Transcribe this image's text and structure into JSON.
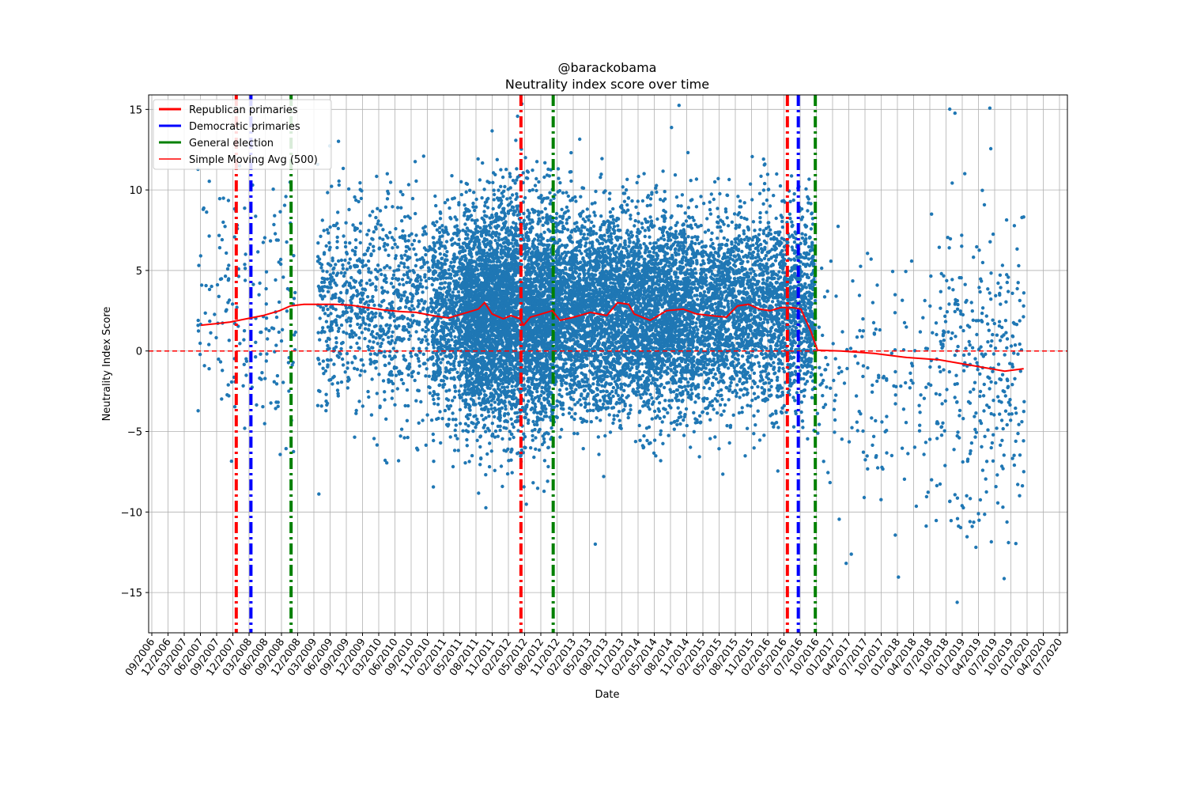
{
  "chart_data": {
    "type": "scatter",
    "title": "@barackobama",
    "subtitle": "Neutrality index score over time",
    "xlabel": "Date",
    "ylabel": "Neutrality Index Score",
    "xlim": [
      "2006-09-01",
      "2020-09-15"
    ],
    "ylim": [
      -17.5,
      15.9
    ],
    "yticks": [
      -15,
      -10,
      -5,
      0,
      5,
      10,
      15
    ],
    "ytick_labels": [
      "−15",
      "−10",
      "−5",
      "0",
      "5",
      "10",
      "15"
    ],
    "xtick_labels": [
      "09/2006",
      "12/2006",
      "03/2007",
      "06/2007",
      "09/2007",
      "12/2007",
      "03/2008",
      "06/2008",
      "09/2008",
      "12/2008",
      "03/2009",
      "06/2009",
      "09/2009",
      "12/2009",
      "03/2010",
      "06/2010",
      "09/2010",
      "11/2010",
      "02/2011",
      "05/2011",
      "08/2011",
      "11/2011",
      "02/2012",
      "05/2012",
      "08/2012",
      "11/2012",
      "02/2013",
      "05/2013",
      "08/2013",
      "11/2013",
      "02/2014",
      "05/2014",
      "08/2014",
      "11/2014",
      "02/2015",
      "05/2015",
      "08/2015",
      "11/2015",
      "02/2016",
      "05/2016",
      "07/2016",
      "10/2016",
      "01/2017",
      "04/2017",
      "07/2017",
      "10/2017",
      "01/2018",
      "04/2018",
      "07/2018",
      "10/2018",
      "01/2019",
      "04/2019",
      "07/2019",
      "10/2019",
      "01/2020",
      "04/2020",
      "07/2020"
    ],
    "grid": true,
    "legend_position": "top-left",
    "zero_line": {
      "y": 0,
      "color": "#ff0000",
      "style": "dashed"
    },
    "legend": [
      {
        "label": "Republican primaries",
        "color": "#ff0000",
        "kind": "thick-line"
      },
      {
        "label": "Democratic primaries",
        "color": "#0000ff",
        "kind": "thick-line"
      },
      {
        "label": "General election",
        "color": "#008000",
        "kind": "thick-line"
      },
      {
        "label": "Simple Moving Avg (500)",
        "color": "#ff0000",
        "kind": "line"
      }
    ],
    "event_lines": [
      {
        "label": "Republican primaries",
        "date": "2008-01-03",
        "color": "#ff0000"
      },
      {
        "label": "Democratic primaries",
        "date": "2008-03-25",
        "color": "#0000ff"
      },
      {
        "label": "General election",
        "date": "2008-11-04",
        "color": "#008000"
      },
      {
        "label": "Republican primaries",
        "date": "2012-05-10",
        "color": "#ff0000"
      },
      {
        "label": "General election",
        "date": "2012-11-06",
        "color": "#008000"
      },
      {
        "label": "Republican primaries",
        "date": "2016-06-05",
        "color": "#ff0000"
      },
      {
        "label": "Democratic primaries",
        "date": "2016-08-05",
        "color": "#0000ff"
      },
      {
        "label": "General election",
        "date": "2016-11-08",
        "color": "#008000"
      }
    ],
    "moving_average": {
      "name": "Simple Moving Avg (500)",
      "color": "#ff0000",
      "points": [
        [
          "2007-06-20",
          1.6
        ],
        [
          "2007-09-15",
          1.7
        ],
        [
          "2007-12-01",
          1.8
        ],
        [
          "2008-03-01",
          2.0
        ],
        [
          "2008-06-01",
          2.2
        ],
        [
          "2008-09-01",
          2.5
        ],
        [
          "2008-11-01",
          2.8
        ],
        [
          "2009-01-15",
          2.9
        ],
        [
          "2009-04-01",
          2.9
        ],
        [
          "2009-07-01",
          2.9
        ],
        [
          "2009-10-01",
          2.85
        ],
        [
          "2010-01-01",
          2.7
        ],
        [
          "2010-04-01",
          2.55
        ],
        [
          "2010-07-01",
          2.45
        ],
        [
          "2010-10-01",
          2.4
        ],
        [
          "2011-01-01",
          2.2
        ],
        [
          "2011-04-01",
          2.05
        ],
        [
          "2011-07-01",
          2.35
        ],
        [
          "2011-09-15",
          2.6
        ],
        [
          "2011-10-20",
          3.0
        ],
        [
          "2011-12-01",
          2.3
        ],
        [
          "2012-02-01",
          2.0
        ],
        [
          "2012-03-15",
          2.2
        ],
        [
          "2012-05-05",
          2.0
        ],
        [
          "2012-05-25",
          1.6
        ],
        [
          "2012-07-01",
          2.1
        ],
        [
          "2012-09-01",
          2.3
        ],
        [
          "2012-11-01",
          2.5
        ],
        [
          "2012-12-15",
          1.9
        ],
        [
          "2013-03-01",
          2.1
        ],
        [
          "2013-06-01",
          2.4
        ],
        [
          "2013-09-01",
          2.2
        ],
        [
          "2013-11-01",
          3.0
        ],
        [
          "2014-01-01",
          2.9
        ],
        [
          "2014-02-01",
          2.3
        ],
        [
          "2014-05-01",
          1.9
        ],
        [
          "2014-08-01",
          2.5
        ],
        [
          "2014-11-01",
          2.6
        ],
        [
          "2015-01-15",
          2.3
        ],
        [
          "2015-04-01",
          2.2
        ],
        [
          "2015-07-01",
          2.1
        ],
        [
          "2015-09-01",
          2.8
        ],
        [
          "2015-11-01",
          2.9
        ],
        [
          "2016-01-01",
          2.6
        ],
        [
          "2016-03-01",
          2.5
        ],
        [
          "2016-05-01",
          2.7
        ],
        [
          "2016-07-01",
          2.7
        ],
        [
          "2016-08-20",
          2.6
        ],
        [
          "2016-10-15",
          1.2
        ],
        [
          "2016-11-20",
          0.05
        ],
        [
          "2017-04-01",
          0.0
        ],
        [
          "2017-10-01",
          -0.15
        ],
        [
          "2018-04-01",
          -0.4
        ],
        [
          "2018-10-01",
          -0.55
        ],
        [
          "2019-04-01",
          -0.9
        ],
        [
          "2019-10-01",
          -1.25
        ],
        [
          "2020-01-15",
          -1.1
        ]
      ]
    },
    "scatter_series": {
      "name": "tweets",
      "color": "#1f77b4",
      "density_segments": [
        {
          "start": "2007-06-01",
          "end": "2008-12-01",
          "count": 180,
          "mean": 2.8,
          "sd": 4.0
        },
        {
          "start": "2009-04-01",
          "end": "2011-01-01",
          "count": 900,
          "mean": 2.6,
          "sd": 3.3
        },
        {
          "start": "2011-01-01",
          "end": "2011-07-01",
          "count": 700,
          "mean": 2.2,
          "sd": 3.2
        },
        {
          "start": "2011-07-01",
          "end": "2012-11-10",
          "count": 4200,
          "mean": 2.1,
          "sd": 3.5
        },
        {
          "start": "2012-11-10",
          "end": "2015-01-01",
          "count": 4500,
          "mean": 2.4,
          "sd": 3.0
        },
        {
          "start": "2015-01-01",
          "end": "2016-11-08",
          "count": 2600,
          "mean": 2.5,
          "sd": 3.0
        },
        {
          "start": "2016-11-20",
          "end": "2018-10-01",
          "count": 180,
          "mean": -2.0,
          "sd": 4.0
        },
        {
          "start": "2018-10-01",
          "end": "2020-01-20",
          "count": 330,
          "mean": -1.5,
          "sd": 5.0
        }
      ]
    }
  }
}
